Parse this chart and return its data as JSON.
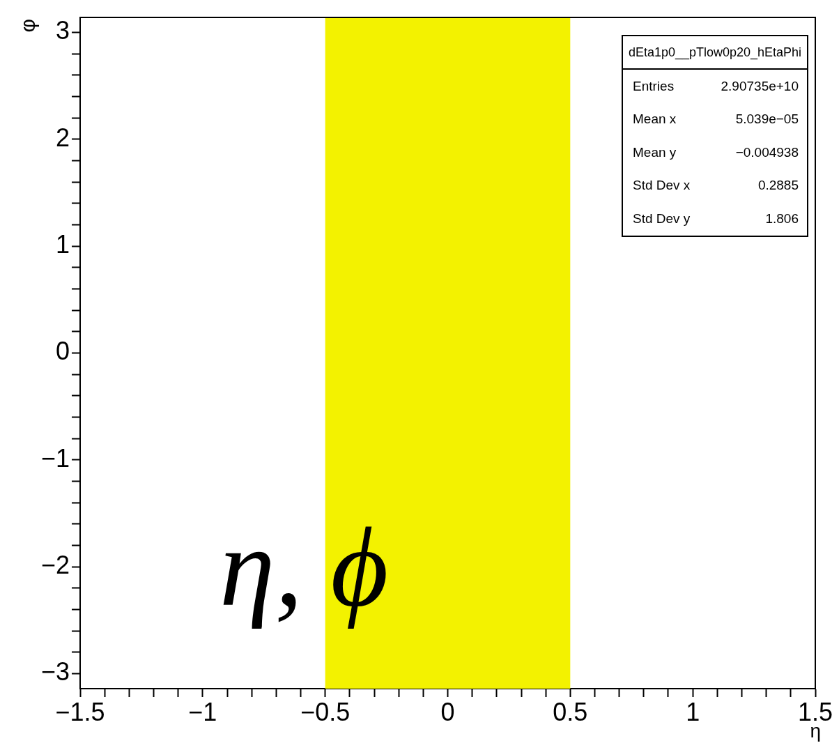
{
  "chart_data": {
    "type": "scatter",
    "xlabel": "η",
    "ylabel": "φ",
    "xlim": [
      -1.5,
      1.5
    ],
    "ylim": [
      -3.14,
      3.14
    ],
    "xticks": [
      -1.5,
      {
        "value": -1.4,
        "label": null
      },
      {
        "value": -1.3,
        "label": null
      },
      {
        "value": -1.2,
        "label": null
      },
      {
        "value": -1.1,
        "label": null
      },
      -1,
      {
        "value": -0.9,
        "label": null
      },
      {
        "value": -0.8,
        "label": null
      },
      {
        "value": -0.7,
        "label": null
      },
      {
        "value": -0.6,
        "label": null
      },
      -0.5,
      {
        "value": -0.4,
        "label": null
      },
      {
        "value": -0.3,
        "label": null
      },
      {
        "value": -0.2,
        "label": null
      },
      {
        "value": -0.1,
        "label": null
      },
      0,
      {
        "value": 0.1,
        "label": null
      },
      {
        "value": 0.2,
        "label": null
      },
      {
        "value": 0.3,
        "label": null
      },
      {
        "value": 0.4,
        "label": null
      },
      0.5,
      {
        "value": 0.6,
        "label": null
      },
      {
        "value": 0.7,
        "label": null
      },
      {
        "value": 0.8,
        "label": null
      },
      {
        "value": 0.9,
        "label": null
      },
      1,
      {
        "value": 1.1,
        "label": null
      },
      {
        "value": 1.2,
        "label": null
      },
      {
        "value": 1.3,
        "label": null
      },
      {
        "value": 1.4,
        "label": null
      },
      1.5
    ],
    "yticks": [
      -3,
      {
        "value": -2.8,
        "label": null
      },
      {
        "value": -2.6,
        "label": null
      },
      {
        "value": -2.4,
        "label": null
      },
      {
        "value": -2.2,
        "label": null
      },
      -2,
      {
        "value": -1.8,
        "label": null
      },
      {
        "value": -1.6,
        "label": null
      },
      {
        "value": -1.4,
        "label": null
      },
      {
        "value": -1.2,
        "label": null
      },
      -1,
      {
        "value": -0.8,
        "label": null
      },
      {
        "value": -0.6,
        "label": null
      },
      {
        "value": -0.4,
        "label": null
      },
      {
        "value": -0.2,
        "label": null
      },
      0,
      {
        "value": 0.2,
        "label": null
      },
      {
        "value": 0.4,
        "label": null
      },
      {
        "value": 0.6,
        "label": null
      },
      {
        "value": 0.8,
        "label": null
      },
      1,
      {
        "value": 1.2,
        "label": null
      },
      {
        "value": 1.4,
        "label": null
      },
      {
        "value": 1.6,
        "label": null
      },
      {
        "value": 1.8,
        "label": null
      },
      2,
      {
        "value": 2.2,
        "label": null
      },
      {
        "value": 2.4,
        "label": null
      },
      {
        "value": 2.6,
        "label": null
      },
      {
        "value": 2.8,
        "label": null
      },
      3
    ],
    "bands": [
      {
        "axis": "x",
        "from": -0.5,
        "to": 0.5,
        "color": "#f3f200"
      }
    ],
    "annotations": [
      "dEta1p0__pTlow0p20_hEtaPhi",
      "Entries",
      "2.90735e+10",
      "Mean x",
      "5.039e−05",
      "Mean y",
      "−0.004938",
      "Std Dev x",
      "0.2885",
      "Std Dev y",
      "1.806",
      "η, ϕ"
    ]
  }
}
